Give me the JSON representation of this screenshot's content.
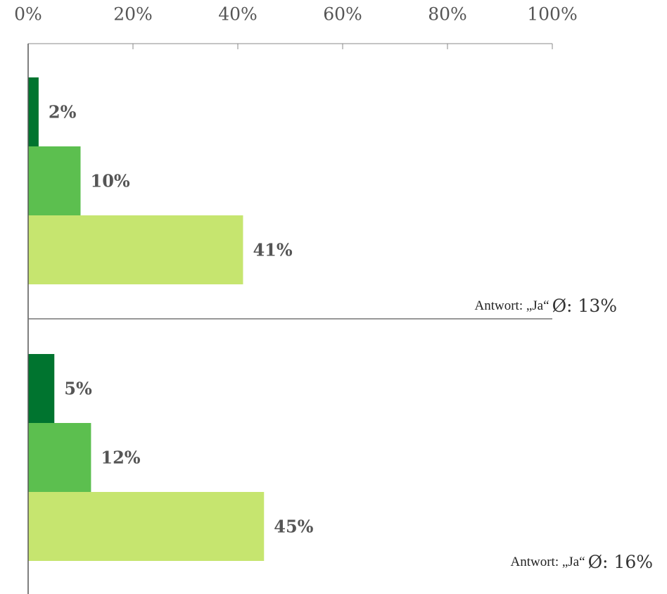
{
  "chart_data": {
    "type": "bar",
    "orientation": "horizontal",
    "categories": [
      null,
      null
    ],
    "series": [
      {
        "color": "#00742f",
        "values": [
          2,
          5
        ],
        "value_labels": [
          "2%",
          "5%"
        ]
      },
      {
        "color": "#5cbf4f",
        "values": [
          10,
          12
        ],
        "value_labels": [
          "10%",
          "12%"
        ]
      },
      {
        "color": "#c6e56f",
        "values": [
          41,
          45
        ],
        "value_labels": [
          "41%",
          "45%"
        ]
      }
    ],
    "xlim": [
      0,
      100
    ],
    "xticks": [
      {
        "value": 0,
        "label": "0%"
      },
      {
        "value": 20,
        "label": "20%"
      },
      {
        "value": 40,
        "label": "40%"
      },
      {
        "value": 60,
        "label": "60%"
      },
      {
        "value": 80,
        "label": "80%"
      },
      {
        "value": 100,
        "label": "100%"
      }
    ],
    "annotations": [
      {
        "prefix": "Antwort: „Ja“",
        "text": "Ø: 13%"
      },
      {
        "prefix": "Antwort: „Ja“",
        "text": "Ø: 16%"
      }
    ]
  }
}
